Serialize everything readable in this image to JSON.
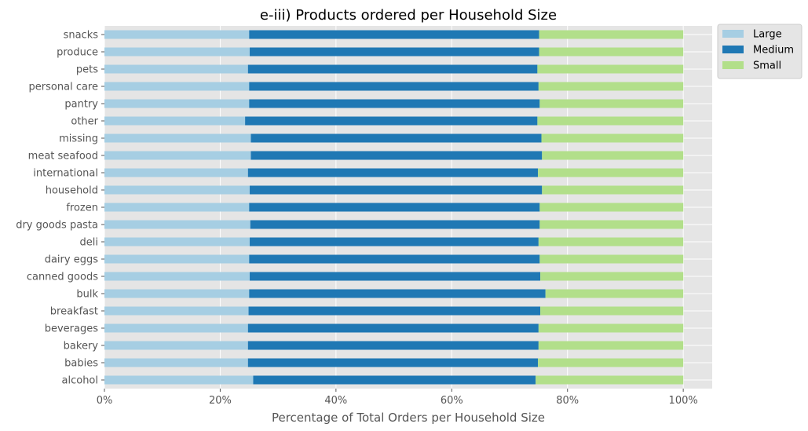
{
  "chart_data": {
    "type": "bar",
    "orientation": "horizontal",
    "stacked": true,
    "title": "e-iii) Products ordered per Household Size",
    "xlabel": "Percentage of Total Orders per Household Size",
    "ylabel": "",
    "xlim": [
      0,
      1.05
    ],
    "x_ticks": [
      0,
      0.2,
      0.4,
      0.6,
      0.8,
      1.0
    ],
    "x_tick_labels": [
      "0%",
      "20%",
      "40%",
      "60%",
      "80%",
      "100%"
    ],
    "grid": true,
    "legend_position": "outside-top-right",
    "categories": [
      "alcohol",
      "babies",
      "bakery",
      "beverages",
      "breakfast",
      "bulk",
      "canned goods",
      "dairy eggs",
      "deli",
      "dry goods pasta",
      "frozen",
      "household",
      "international",
      "meat seafood",
      "missing",
      "other",
      "pantry",
      "personal care",
      "pets",
      "produce",
      "snacks"
    ],
    "series": [
      {
        "name": "Large",
        "color": "#a6cee3",
        "values": [
          0.257,
          0.248,
          0.248,
          0.248,
          0.249,
          0.25,
          0.251,
          0.25,
          0.251,
          0.252,
          0.25,
          0.251,
          0.248,
          0.253,
          0.253,
          0.243,
          0.25,
          0.25,
          0.248,
          0.251,
          0.25
        ]
      },
      {
        "name": "Medium",
        "color": "#1f78b4",
        "values": [
          0.488,
          0.501,
          0.502,
          0.502,
          0.504,
          0.512,
          0.502,
          0.502,
          0.499,
          0.5,
          0.502,
          0.505,
          0.501,
          0.503,
          0.502,
          0.505,
          0.502,
          0.5,
          0.5,
          0.5,
          0.501
        ]
      },
      {
        "name": "Small",
        "color": "#b2df8a",
        "values": [
          0.255,
          0.251,
          0.25,
          0.25,
          0.247,
          0.238,
          0.247,
          0.248,
          0.25,
          0.248,
          0.248,
          0.244,
          0.251,
          0.244,
          0.245,
          0.252,
          0.248,
          0.25,
          0.252,
          0.249,
          0.249
        ]
      }
    ]
  }
}
